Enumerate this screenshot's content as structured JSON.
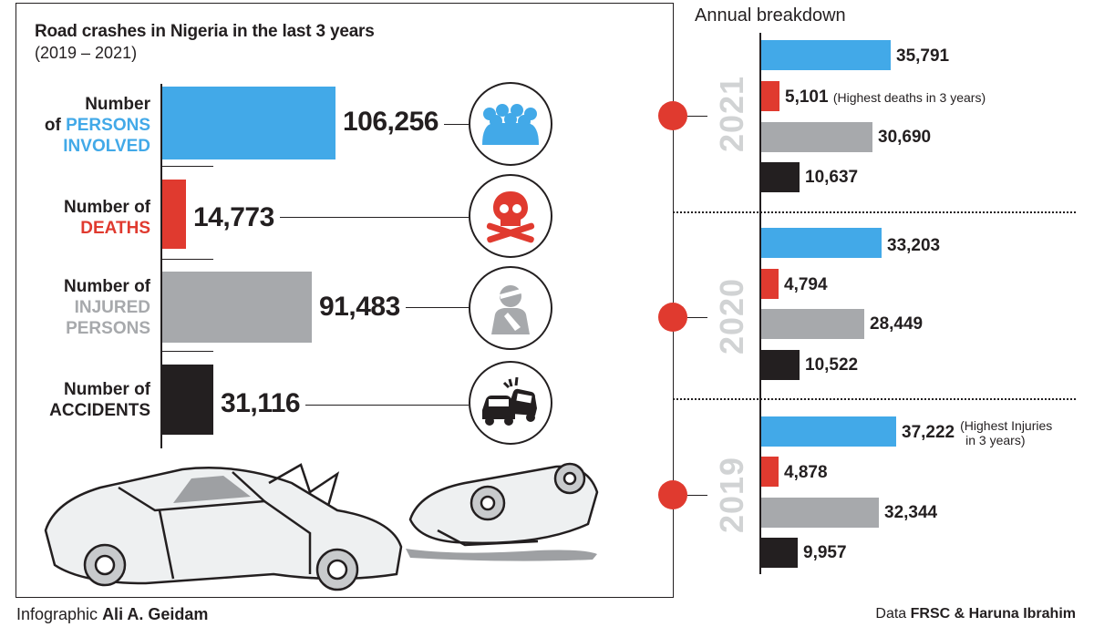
{
  "header": {
    "title": "Road crashes in Nigeria in the last 3 years",
    "subtitle": "(2019 – 2021)",
    "annual_title": "Annual breakdown"
  },
  "categories": [
    {
      "line1": "Number",
      "line2a": "of ",
      "line2b": "PERSONS",
      "line3": "INVOLVED",
      "value_text": "106,256",
      "color": "#42a9e8",
      "icon": "crowd-icon"
    },
    {
      "line1": "Number of",
      "line2": "DEATHS",
      "value_text": "14,773",
      "color": "#e03a2f",
      "icon": "skull-crossbones-icon"
    },
    {
      "line1": "Number of",
      "line2": "INJURED",
      "line3": "PERSONS",
      "value_text": "91,483",
      "color": "#a7a9ac",
      "icon": "injured-person-icon"
    },
    {
      "line1": "Number of",
      "line2": "ACCIDENTS",
      "value_text": "31,116",
      "color": "#231f20",
      "icon": "car-crash-icon"
    }
  ],
  "years": [
    {
      "year": "2021",
      "values_text": [
        "35,791",
        "5,101",
        "30,690",
        "10,637"
      ],
      "note_index": 1,
      "note": "(Highest deaths in 3 years)"
    },
    {
      "year": "2020",
      "values_text": [
        "33,203",
        "4,794",
        "28,449",
        "10,522"
      ]
    },
    {
      "year": "2019",
      "values_text": [
        "37,222",
        "4,878",
        "32,344",
        "9,957"
      ],
      "note_index": 0,
      "note_line1": "(Highest Injuries",
      "note_line2": "in 3 years)"
    }
  ],
  "footer": {
    "infographic_prefix": "Infographic ",
    "infographic_author": "Ali A. Geidam",
    "data_prefix": "Data ",
    "data_source": "FRSC & Haruna Ibrahim"
  },
  "chart_data": [
    {
      "type": "bar",
      "orientation": "horizontal",
      "title": "Road crashes in Nigeria in the last 3 years",
      "subtitle": "(2019 – 2021)",
      "categories": [
        "Number of PERSONS INVOLVED",
        "Number of DEATHS",
        "Number of INJURED PERSONS",
        "Number of ACCIDENTS"
      ],
      "values": [
        106256,
        14773,
        91483,
        31116
      ],
      "colors": [
        "#42a9e8",
        "#e03a2f",
        "#a7a9ac",
        "#231f20"
      ]
    },
    {
      "type": "bar",
      "orientation": "horizontal",
      "title": "Annual breakdown",
      "categories": [
        "2021",
        "2020",
        "2019"
      ],
      "series": [
        {
          "values": [
            35791,
            33203,
            37222
          ],
          "color": "#42a9e8"
        },
        {
          "values": [
            5101,
            4794,
            4878
          ],
          "color": "#e03a2f"
        },
        {
          "values": [
            30690,
            28449,
            32344
          ],
          "color": "#a7a9ac"
        },
        {
          "values": [
            10637,
            10522,
            9957
          ],
          "color": "#231f20"
        }
      ],
      "annotations": [
        "(Highest deaths in 3 years)",
        "(Highest Injuries in 3 years)"
      ]
    }
  ]
}
